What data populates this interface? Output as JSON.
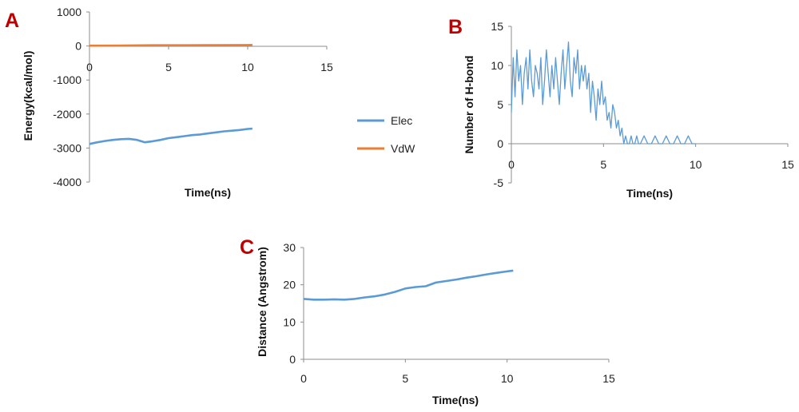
{
  "figure": {
    "panel_letters": [
      "A",
      "B",
      "C"
    ]
  },
  "colors": {
    "elec": "#5b9bd5",
    "vdw": "#ed7d31",
    "hbond": "#5b9bd5",
    "distance": "#5b9bd5"
  },
  "chart_data": [
    {
      "panel": "A",
      "type": "line",
      "xlabel": "Time(ns)",
      "ylabel": "Energy(kcal/mol)",
      "xlim": [
        0,
        15
      ],
      "ylim": [
        -4000,
        1000
      ],
      "x_ticks": [
        0,
        5,
        10,
        15
      ],
      "y_ticks": [
        1000,
        0,
        -1000,
        -2000,
        -3000,
        -4000
      ],
      "legend_position": "right",
      "grid": false,
      "series": [
        {
          "name": "Elec",
          "x": [
            0,
            0.5,
            1,
            1.5,
            2,
            2.5,
            3,
            3.5,
            4,
            4.5,
            5,
            5.5,
            6,
            6.5,
            7,
            7.5,
            8,
            8.5,
            9,
            9.5,
            10,
            10.3
          ],
          "y": [
            -2880,
            -2830,
            -2790,
            -2760,
            -2740,
            -2730,
            -2760,
            -2830,
            -2800,
            -2760,
            -2710,
            -2680,
            -2650,
            -2620,
            -2600,
            -2570,
            -2540,
            -2510,
            -2490,
            -2470,
            -2440,
            -2430
          ]
        },
        {
          "name": "VdW",
          "x": [
            0,
            2,
            4,
            6,
            8,
            10,
            10.3
          ],
          "y": [
            10,
            15,
            20,
            22,
            25,
            28,
            30
          ]
        }
      ]
    },
    {
      "panel": "B",
      "type": "line",
      "xlabel": "Time(ns)",
      "ylabel": "Number of H-bond",
      "xlim": [
        0,
        15
      ],
      "ylim": [
        -5,
        15
      ],
      "x_ticks": [
        0,
        5,
        10,
        15
      ],
      "y_ticks": [
        15,
        10,
        5,
        0,
        -5
      ],
      "grid": false,
      "series": [
        {
          "x": [
            0,
            0.1,
            0.2,
            0.3,
            0.4,
            0.5,
            0.6,
            0.7,
            0.8,
            0.9,
            1.0,
            1.1,
            1.2,
            1.3,
            1.4,
            1.5,
            1.6,
            1.7,
            1.8,
            1.9,
            2.0,
            2.1,
            2.2,
            2.3,
            2.4,
            2.5,
            2.6,
            2.7,
            2.8,
            2.9,
            3.0,
            3.1,
            3.2,
            3.3,
            3.4,
            3.5,
            3.6,
            3.7,
            3.8,
            3.9,
            4.0,
            4.1,
            4.2,
            4.3,
            4.4,
            4.5,
            4.6,
            4.7,
            4.8,
            4.9,
            5.0,
            5.1,
            5.2,
            5.3,
            5.4,
            5.5,
            5.6,
            5.7,
            5.8,
            5.9,
            6.0,
            6.1,
            6.2,
            6.3,
            6.4,
            6.5,
            6.6,
            6.7,
            6.8,
            6.9,
            7.0,
            7.2,
            7.4,
            7.6,
            7.8,
            8.0,
            8.2,
            8.4,
            8.6,
            8.8,
            9.0,
            9.2,
            9.4,
            9.6,
            9.8,
            10.0
          ],
          "y": [
            4,
            11,
            6,
            12,
            8,
            10,
            5,
            9,
            11,
            7,
            12,
            8,
            6,
            10,
            9,
            7,
            11,
            5,
            8,
            12,
            9,
            6,
            10,
            7,
            11,
            8,
            5,
            9,
            12,
            7,
            10,
            13,
            8,
            6,
            11,
            9,
            12,
            7,
            10,
            8,
            10,
            7,
            9,
            4,
            8,
            6,
            3,
            7,
            5,
            8,
            5,
            6,
            3,
            4,
            2,
            5,
            4,
            2,
            3,
            1,
            2,
            0,
            1,
            0,
            0,
            1,
            0,
            0,
            1,
            0,
            0,
            1,
            0,
            0,
            1,
            0,
            0,
            1,
            0,
            0,
            1,
            0,
            0,
            1,
            0,
            0
          ]
        }
      ]
    },
    {
      "panel": "C",
      "type": "line",
      "xlabel": "Time(ns)",
      "ylabel": "Distance (Angstrom)",
      "xlim": [
        0,
        15
      ],
      "ylim": [
        0,
        30
      ],
      "x_ticks": [
        0,
        5,
        10,
        15
      ],
      "y_ticks": [
        30,
        20,
        10,
        0
      ],
      "grid": false,
      "series": [
        {
          "x": [
            0,
            0.5,
            1,
            1.5,
            2,
            2.5,
            3,
            3.5,
            4,
            4.5,
            5,
            5.5,
            6,
            6.5,
            7,
            7.5,
            8,
            8.5,
            9,
            9.5,
            10,
            10.3
          ],
          "y": [
            16.2,
            16.0,
            16.0,
            16.1,
            16.0,
            16.2,
            16.6,
            16.9,
            17.4,
            18.1,
            19.0,
            19.4,
            19.6,
            20.6,
            21.0,
            21.4,
            21.9,
            22.3,
            22.8,
            23.2,
            23.6,
            23.8
          ]
        }
      ]
    }
  ]
}
